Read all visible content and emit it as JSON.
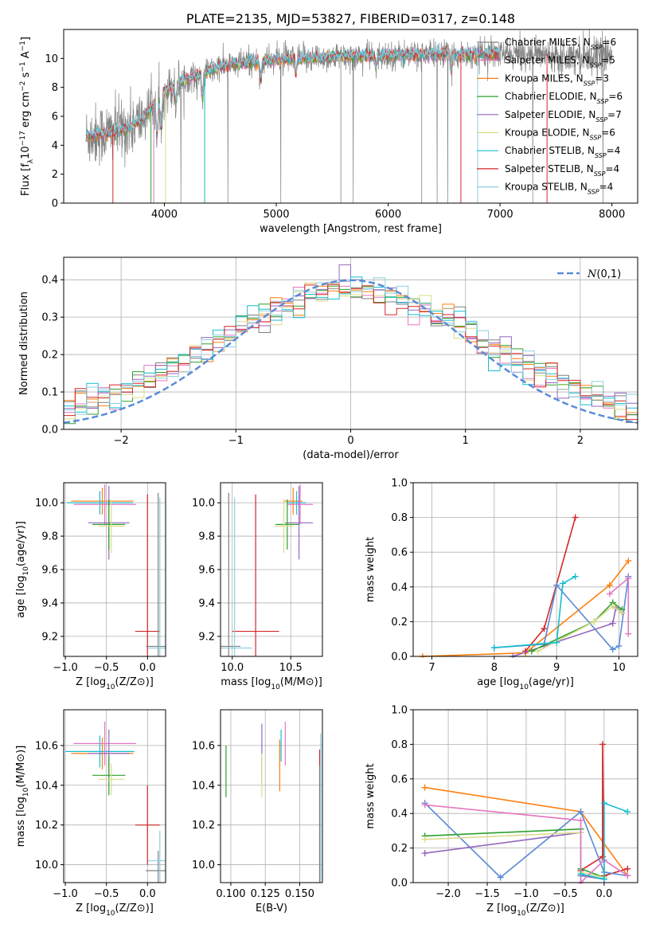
{
  "colors": {
    "grid": "#b0b0b0",
    "data_spectrum": "#808080",
    "normal_curve": "#5b8bd6",
    "models": [
      "#808080",
      "#e377c2",
      "#ff7f0e",
      "#2ca02c",
      "#9467bd",
      "#dbdb8d",
      "#17becf",
      "#d62728",
      "#8ecfe4"
    ]
  },
  "chart_data": [
    {
      "id": "spectrum",
      "type": "line",
      "title": "PLATE=2135, MJD=53827, FIBERID=0317, z=0.148",
      "xlabel": "wavelength [Angstrom, rest frame]",
      "ylabel": "Flux [f$_{\\lambda}$10$^{-17}$ erg cm$^{-2}$ s$^{-1}$ A$^{-1}$]",
      "xlim": [
        3100,
        8230
      ],
      "ylim": [
        0,
        12
      ],
      "xticks": [
        4000,
        5000,
        6000,
        7000,
        8000
      ],
      "yticks": [
        0,
        2,
        4,
        6,
        8,
        10
      ],
      "legend_position": "top-right",
      "legend": [
        {
          "prefix": "Chabrier MILES, N",
          "sub": "SSP",
          "suffix": "=6",
          "color": "#808080"
        },
        {
          "prefix": "Salpeter MILES, N",
          "sub": "SSP",
          "suffix": "=5",
          "color": "#e377c2"
        },
        {
          "prefix": "Kroupa MILES, N",
          "sub": "SSP",
          "suffix": "=3",
          "color": "#ff7f0e"
        },
        {
          "prefix": "Chabrier ELODIE, N",
          "sub": "SSP",
          "suffix": "=6",
          "color": "#2ca02c"
        },
        {
          "prefix": "Salpeter ELODIE, N",
          "sub": "SSP",
          "suffix": "=7",
          "color": "#9467bd"
        },
        {
          "prefix": "Kroupa ELODIE, N",
          "sub": "SSP",
          "suffix": "=6",
          "color": "#dbdb8d"
        },
        {
          "prefix": "Chabrier STELIB, N",
          "sub": "SSP",
          "suffix": "=4",
          "color": "#17becf"
        },
        {
          "prefix": "Salpeter STELIB, N",
          "sub": "SSP",
          "suffix": "=4",
          "color": "#d62728"
        },
        {
          "prefix": "Kroupa STELIB, N",
          "sub": "SSP",
          "suffix": "=4",
          "color": "#8ecfe4"
        }
      ],
      "continuum": {
        "x": [
          3300,
          3450,
          3600,
          3700,
          3800,
          3900,
          4000,
          4100,
          4200,
          4300,
          4400,
          4500,
          4700,
          5000,
          5200,
          5500,
          6000,
          6500,
          7000,
          7500,
          8000
        ],
        "y": [
          4.6,
          4.8,
          5.0,
          5.3,
          5.8,
          6.8,
          7.7,
          8.2,
          8.6,
          8.8,
          9.1,
          9.4,
          9.7,
          9.9,
          10.0,
          10.1,
          10.2,
          10.3,
          10.3,
          10.3,
          10.2
        ]
      }
    },
    {
      "id": "residuals",
      "type": "line",
      "xlabel": "(data-model)/error",
      "ylabel": "Normed distribution",
      "xlim": [
        -2.5,
        2.5
      ],
      "ylim": [
        0,
        0.46
      ],
      "xticks": [
        -2,
        -1,
        0,
        1,
        2
      ],
      "yticks": [
        0.0,
        0.1,
        0.2,
        0.3,
        0.4
      ],
      "legend_position": "top-right",
      "legend": [
        {
          "label": "$\\mathcal{N}(0,1)$",
          "color": "#5b8bd6"
        }
      ]
    },
    {
      "id": "age-vs-z",
      "type": "scatter",
      "xlabel": "Z [log$_{10}$(Z/Z$_\\odot$)]",
      "ylabel": "age  [log$_{10}$(age/yr)]",
      "xlim": [
        -1.02,
        0.22
      ],
      "ylim": [
        9.08,
        10.12
      ],
      "xticks": [
        -1.0,
        -0.5,
        0.0
      ],
      "yticks": [
        9.2,
        9.4,
        9.6,
        9.8,
        10.0
      ],
      "points": [
        {
          "x": -0.55,
          "y": 10.01,
          "xerr": 0.38,
          "yerr": 0.08,
          "color": "#ff7f0e"
        },
        {
          "x": -0.58,
          "y": 10.0,
          "xerr": 0.4,
          "yerr": 0.07,
          "color": "#17becf"
        },
        {
          "x": -0.52,
          "y": 9.99,
          "xerr": 0.38,
          "yerr": 0.12,
          "color": "#e377c2"
        },
        {
          "x": -0.47,
          "y": 9.88,
          "xerr": 0.25,
          "yerr": 0.22,
          "color": "#9467bd"
        },
        {
          "x": -0.47,
          "y": 9.87,
          "xerr": 0.2,
          "yerr": 0.15,
          "color": "#2ca02c"
        },
        {
          "x": -0.44,
          "y": 9.86,
          "xerr": 0.16,
          "yerr": 0.16,
          "color": "#dbdb8d"
        },
        {
          "x": 0.0,
          "y": 9.23,
          "xerr": 0.15,
          "yerr": 0.82,
          "color": "#d62728"
        },
        {
          "x": 0.13,
          "y": 9.14,
          "xerr": 0.15,
          "yerr": 0.92,
          "color": "#808080"
        },
        {
          "x": 0.15,
          "y": 9.13,
          "xerr": 0.14,
          "yerr": 0.9,
          "color": "#8ecfe4"
        }
      ]
    },
    {
      "id": "age-vs-mass",
      "type": "scatter",
      "xlabel": "mass [log$_{10}$(M/M$_\\odot$)]",
      "ylabel": "",
      "xlim": [
        9.9,
        10.77
      ],
      "ylim": [
        9.08,
        10.12
      ],
      "xticks": [
        10.0,
        10.5
      ],
      "yticks": [
        9.2,
        9.4,
        9.6,
        9.8,
        10.0
      ],
      "points": [
        {
          "x": 10.52,
          "y": 10.01,
          "xerr": 0.08,
          "yerr": 0.08,
          "color": "#ff7f0e"
        },
        {
          "x": 10.55,
          "y": 10.0,
          "xerr": 0.08,
          "yerr": 0.07,
          "color": "#17becf"
        },
        {
          "x": 10.58,
          "y": 9.99,
          "xerr": 0.11,
          "yerr": 0.12,
          "color": "#e377c2"
        },
        {
          "x": 10.57,
          "y": 9.88,
          "xerr": 0.12,
          "yerr": 0.22,
          "color": "#9467bd"
        },
        {
          "x": 10.47,
          "y": 9.87,
          "xerr": 0.1,
          "yerr": 0.15,
          "color": "#2ca02c"
        },
        {
          "x": 10.44,
          "y": 9.86,
          "xerr": 0.08,
          "yerr": 0.16,
          "color": "#dbdb8d"
        },
        {
          "x": 10.2,
          "y": 9.23,
          "xerr": 0.2,
          "yerr": 0.82,
          "color": "#d62728"
        },
        {
          "x": 9.97,
          "y": 9.14,
          "xerr": 0.1,
          "yerr": 0.92,
          "color": "#808080"
        },
        {
          "x": 10.02,
          "y": 9.13,
          "xerr": 0.15,
          "yerr": 0.9,
          "color": "#8ecfe4"
        }
      ]
    },
    {
      "id": "mass-weight-vs-age",
      "type": "line",
      "xlabel": "age  [log$_{10}$(age/yr)]",
      "ylabel": "mass weight",
      "xlim": [
        6.7,
        10.3
      ],
      "ylim": [
        0,
        1
      ],
      "xticks": [
        7,
        8,
        9,
        10
      ],
      "yticks": [
        0.0,
        0.2,
        0.4,
        0.6,
        0.8,
        1.0
      ],
      "series": [
        {
          "color": "#ff7f0e",
          "x": [
            6.85,
            8.5,
            9.85,
            10.15
          ],
          "y": [
            0.0,
            0.02,
            0.41,
            0.55
          ]
        },
        {
          "color": "#d62728",
          "x": [
            8.5,
            8.8,
            9.3
          ],
          "y": [
            0.03,
            0.16,
            0.8
          ]
        },
        {
          "color": "#5b8bd6",
          "x": [
            8.0,
            8.8,
            9.0,
            9.9,
            10.0,
            10.15
          ],
          "y": [
            0.05,
            0.07,
            0.41,
            0.04,
            0.06,
            0.46
          ]
        },
        {
          "color": "#9467bd",
          "x": [
            8.3,
            9.9,
            9.95,
            10.05
          ],
          "y": [
            0.0,
            0.19,
            0.28,
            0.25
          ]
        },
        {
          "color": "#2ca02c",
          "x": [
            8.6,
            9.6,
            9.9,
            10.05
          ],
          "y": [
            0.03,
            0.2,
            0.31,
            0.27
          ]
        },
        {
          "color": "#dbdb8d",
          "x": [
            8.7,
            9.6,
            9.9,
            10.05
          ],
          "y": [
            0.03,
            0.2,
            0.29,
            0.25
          ]
        },
        {
          "color": "#e377c2",
          "x": [
            9.85,
            10.15,
            10.15
          ],
          "y": [
            0.36,
            0.45,
            0.13
          ]
        },
        {
          "color": "#17becf",
          "x": [
            8.0,
            9.0,
            9.1,
            9.3
          ],
          "y": [
            0.05,
            0.08,
            0.42,
            0.46
          ]
        }
      ]
    },
    {
      "id": "mass-vs-z",
      "type": "scatter",
      "xlabel": "Z [log$_{10}$(Z/Z$_\\odot$)]",
      "ylabel": "mass [log$_{10}$(M/M$_\\odot$)]",
      "xlim": [
        -1.02,
        0.22
      ],
      "ylim": [
        9.91,
        10.78
      ],
      "xticks": [
        -1.0,
        -0.5,
        0.0
      ],
      "yticks": [
        10.0,
        10.2,
        10.4,
        10.6
      ],
      "points": [
        {
          "x": -0.55,
          "y": 10.56,
          "xerr": 0.38,
          "yerr": 0.08,
          "color": "#ff7f0e"
        },
        {
          "x": -0.58,
          "y": 10.57,
          "xerr": 0.42,
          "yerr": 0.08,
          "color": "#17becf"
        },
        {
          "x": -0.52,
          "y": 10.61,
          "xerr": 0.38,
          "yerr": 0.11,
          "color": "#e377c2"
        },
        {
          "x": -0.47,
          "y": 10.56,
          "xerr": 0.25,
          "yerr": 0.12,
          "color": "#9467bd"
        },
        {
          "x": -0.47,
          "y": 10.45,
          "xerr": 0.2,
          "yerr": 0.1,
          "color": "#2ca02c"
        },
        {
          "x": -0.44,
          "y": 10.43,
          "xerr": 0.16,
          "yerr": 0.08,
          "color": "#dbdb8d"
        },
        {
          "x": 0.0,
          "y": 10.2,
          "xerr": 0.15,
          "yerr": 0.2,
          "color": "#d62728"
        },
        {
          "x": 0.13,
          "y": 9.97,
          "xerr": 0.15,
          "yerr": 0.1,
          "color": "#808080"
        },
        {
          "x": 0.15,
          "y": 10.02,
          "xerr": 0.14,
          "yerr": 0.15,
          "color": "#8ecfe4"
        }
      ]
    },
    {
      "id": "mass-vs-ebv",
      "type": "scatter",
      "xlabel": "E(B-V)",
      "ylabel": "",
      "xlim": [
        0.0925,
        0.1665
      ],
      "ylim": [
        9.91,
        10.78
      ],
      "xticks": [
        0.1,
        0.125,
        0.15
      ],
      "xticklabels": [
        "0.100",
        "0.125",
        "0.150"
      ],
      "yticks": [
        10.0,
        10.2,
        10.4,
        10.6
      ],
      "points": [
        {
          "x": 0.0965,
          "y": 10.47,
          "yerr": 0.13,
          "color": "#2ca02c"
        },
        {
          "x": 0.1225,
          "y": 10.56,
          "yerr": 0.15,
          "color": "#9467bd"
        },
        {
          "x": 0.1225,
          "y": 10.45,
          "yerr": 0.11,
          "color": "#dbdb8d"
        },
        {
          "x": 0.1355,
          "y": 10.5,
          "yerr": 0.13,
          "color": "#ff7f0e"
        },
        {
          "x": 0.1365,
          "y": 10.6,
          "yerr": 0.08,
          "color": "#17becf"
        },
        {
          "x": 0.1395,
          "y": 10.61,
          "yerr": 0.11,
          "color": "#e377c2"
        },
        {
          "x": 0.1645,
          "y": 10.2,
          "yerr": 0.38,
          "color": "#d62728"
        },
        {
          "x": 0.1645,
          "y": 10.2,
          "yerr": 0.3,
          "color": "#808080"
        },
        {
          "x": 0.1652,
          "y": 10.28,
          "yerr": 0.38,
          "color": "#8ecfe4"
        }
      ]
    },
    {
      "id": "mass-weight-vs-z",
      "type": "line",
      "xlabel": "Z [log$_{10}$(Z/Z$_\\odot$)]",
      "ylabel": "mass weight",
      "xlim": [
        -2.45,
        0.43
      ],
      "ylim": [
        0,
        1
      ],
      "xticks": [
        -2.0,
        -1.5,
        -1.0,
        -0.5,
        0.0
      ],
      "yticks": [
        0.0,
        0.2,
        0.4,
        0.6,
        0.8,
        1.0
      ],
      "series": [
        {
          "color": "#ff7f0e",
          "x": [
            -2.3,
            -0.3,
            0.3
          ],
          "y": [
            0.55,
            0.41,
            0.04
          ]
        },
        {
          "color": "#d62728",
          "x": [
            -0.3,
            -0.02,
            -0.02,
            0.0,
            0.3
          ],
          "y": [
            0.07,
            0.15,
            0.8,
            0.04,
            0.08
          ]
        },
        {
          "color": "#5b8bd6",
          "x": [
            -2.3,
            -1.33,
            -0.3,
            0.0,
            0.3
          ],
          "y": [
            0.46,
            0.03,
            0.41,
            0.06,
            0.04
          ]
        },
        {
          "color": "#9467bd",
          "x": [
            -2.3,
            -0.3,
            -0.3,
            0.0
          ],
          "y": [
            0.17,
            0.29,
            0.04,
            0.02
          ]
        },
        {
          "color": "#2ca02c",
          "x": [
            -2.3,
            -0.3,
            -0.3,
            0.0
          ],
          "y": [
            0.27,
            0.31,
            0.08,
            0.03
          ]
        },
        {
          "color": "#dbdb8d",
          "x": [
            -2.3,
            -0.3,
            -0.3,
            0.0
          ],
          "y": [
            0.25,
            0.29,
            0.06,
            0.03
          ]
        },
        {
          "color": "#e377c2",
          "x": [
            -2.3,
            -0.3,
            -0.3,
            0.0,
            0.3
          ],
          "y": [
            0.45,
            0.36,
            0.0,
            0.13,
            0.04
          ]
        },
        {
          "color": "#17becf",
          "x": [
            -0.3,
            0.0,
            0.0,
            0.3
          ],
          "y": [
            0.05,
            0.02,
            0.46,
            0.41
          ]
        }
      ]
    }
  ]
}
